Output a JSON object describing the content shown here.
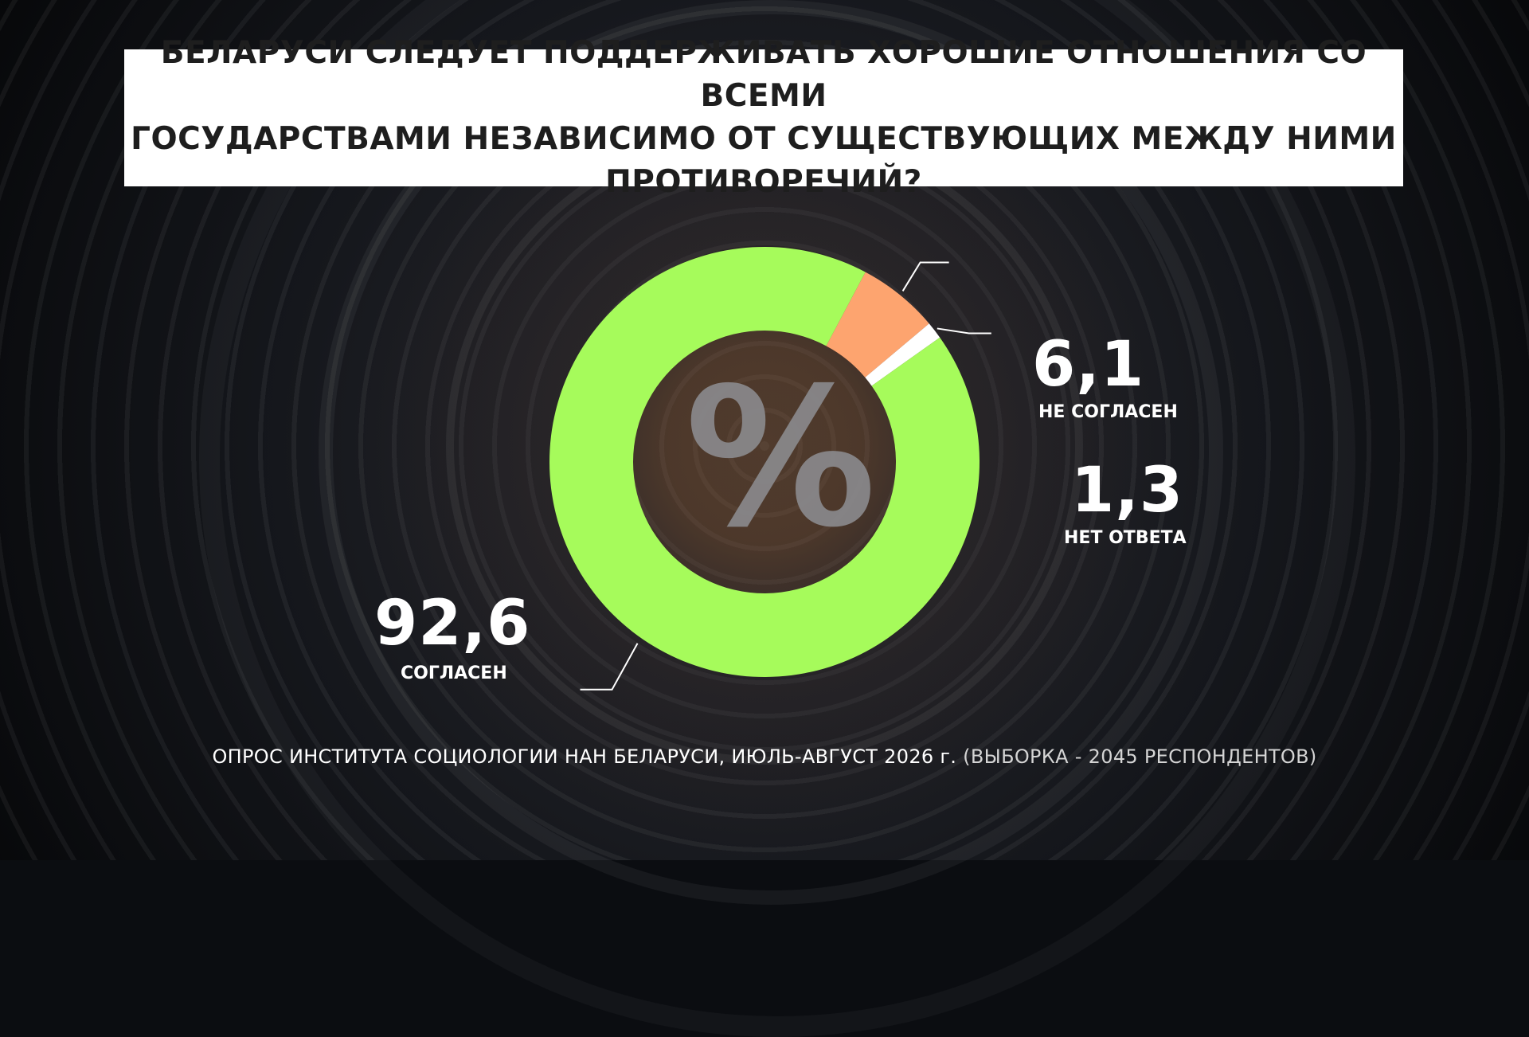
{
  "title": "БЕЛАРУСИ СЛЕДУЕТ ПОДДЕРЖИВАТЬ ХОРОШИЕ ОТНОШЕНИЯ СО ВСЕМИ\nГОСУДАРСТВАМИ НЕЗАВИСИМО ОТ СУЩЕСТВУЮЩИХ МЕЖДУ НИМИ\nПРОТИВОРЕЧИЙ?",
  "center_symbol": "%",
  "source": {
    "main": "ОПРОС ИНСТИТУТА СОЦИОЛОГИИ НАН БЕЛАРУСИ, ИЮЛЬ-АВГУСТ 2026 г.",
    "sample": "(ВЫБОРКА - 2045 РЕСПОНДЕНТОВ)"
  },
  "colors": {
    "agree": "#a6fb5b",
    "disagree": "#fda46f",
    "no_answer": "#ffffff",
    "leader_line": "#ffffff"
  },
  "chart_data": {
    "type": "pie",
    "title": "БЕЛАРУСИ СЛЕДУЕТ ПОДДЕРЖИВАТЬ ХОРОШИЕ ОТНОШЕНИЯ СО ВСЕМИ ГОСУДАРСТВАМИ НЕЗАВИСИМО ОТ СУЩЕСТВУЮЩИХ МЕЖДУ НИМИ ПРОТИВОРЕЧИЙ?",
    "unit": "%",
    "slices": [
      {
        "label": "НЕ СОГЛАСЕН",
        "value": 6.1,
        "value_label": "6,1"
      },
      {
        "label": "НЕТ ОТВЕТА",
        "value": 1.3,
        "value_label": "1,3"
      },
      {
        "label": "СОГЛАСЕН",
        "value": 92.6,
        "value_label": "92,6"
      }
    ]
  }
}
